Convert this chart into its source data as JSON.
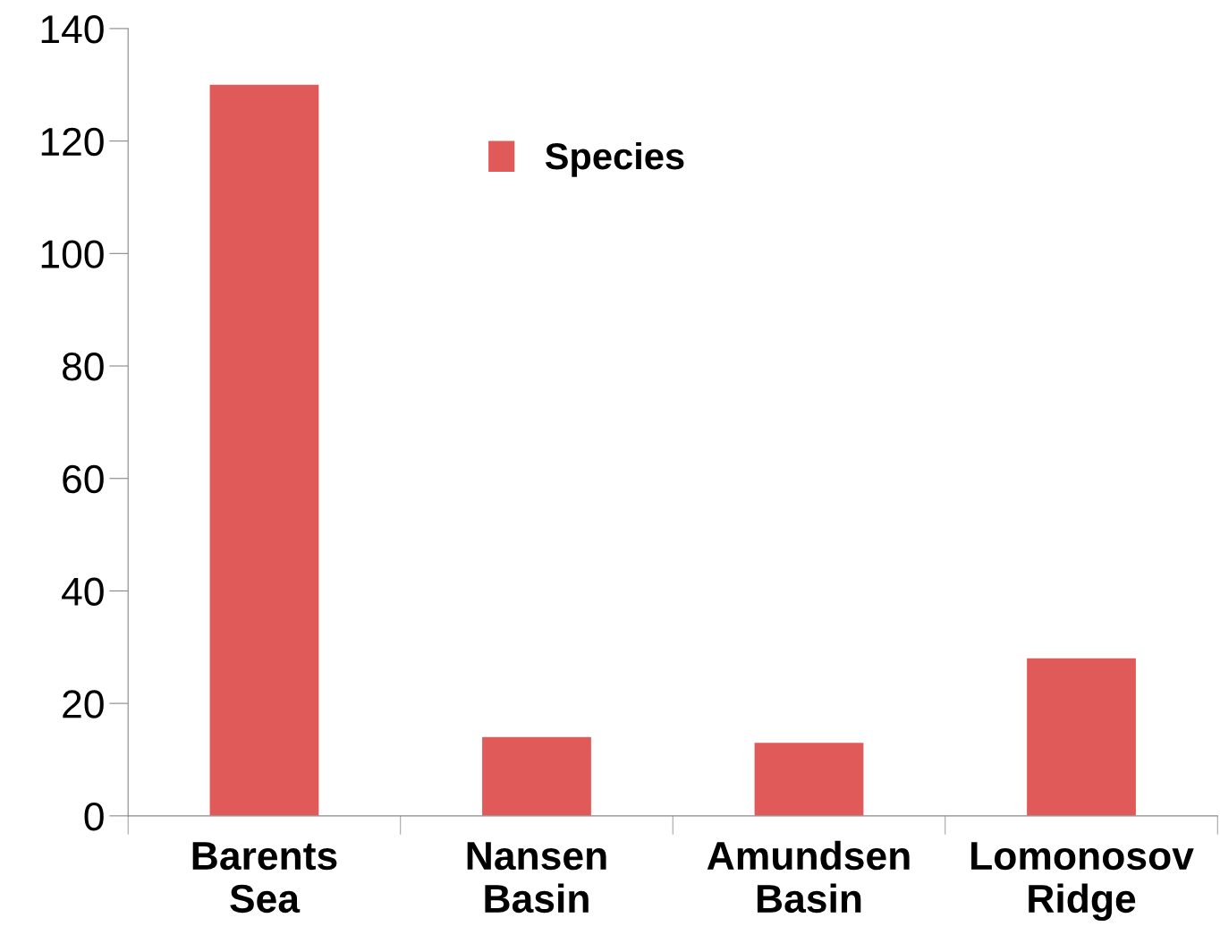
{
  "chart_data": {
    "type": "bar",
    "categories": [
      "Barents\nSea",
      "Nansen\nBasin",
      "Amundsen\nBasin",
      "Lomonosov\nRidge"
    ],
    "series": [
      {
        "name": "Species",
        "color": "#e05a5a",
        "values": [
          130,
          14,
          13,
          28
        ]
      }
    ],
    "ylim": [
      0,
      140
    ],
    "yticks": [
      0,
      20,
      40,
      60,
      80,
      100,
      120,
      140
    ],
    "grid": false,
    "legend": "top"
  }
}
